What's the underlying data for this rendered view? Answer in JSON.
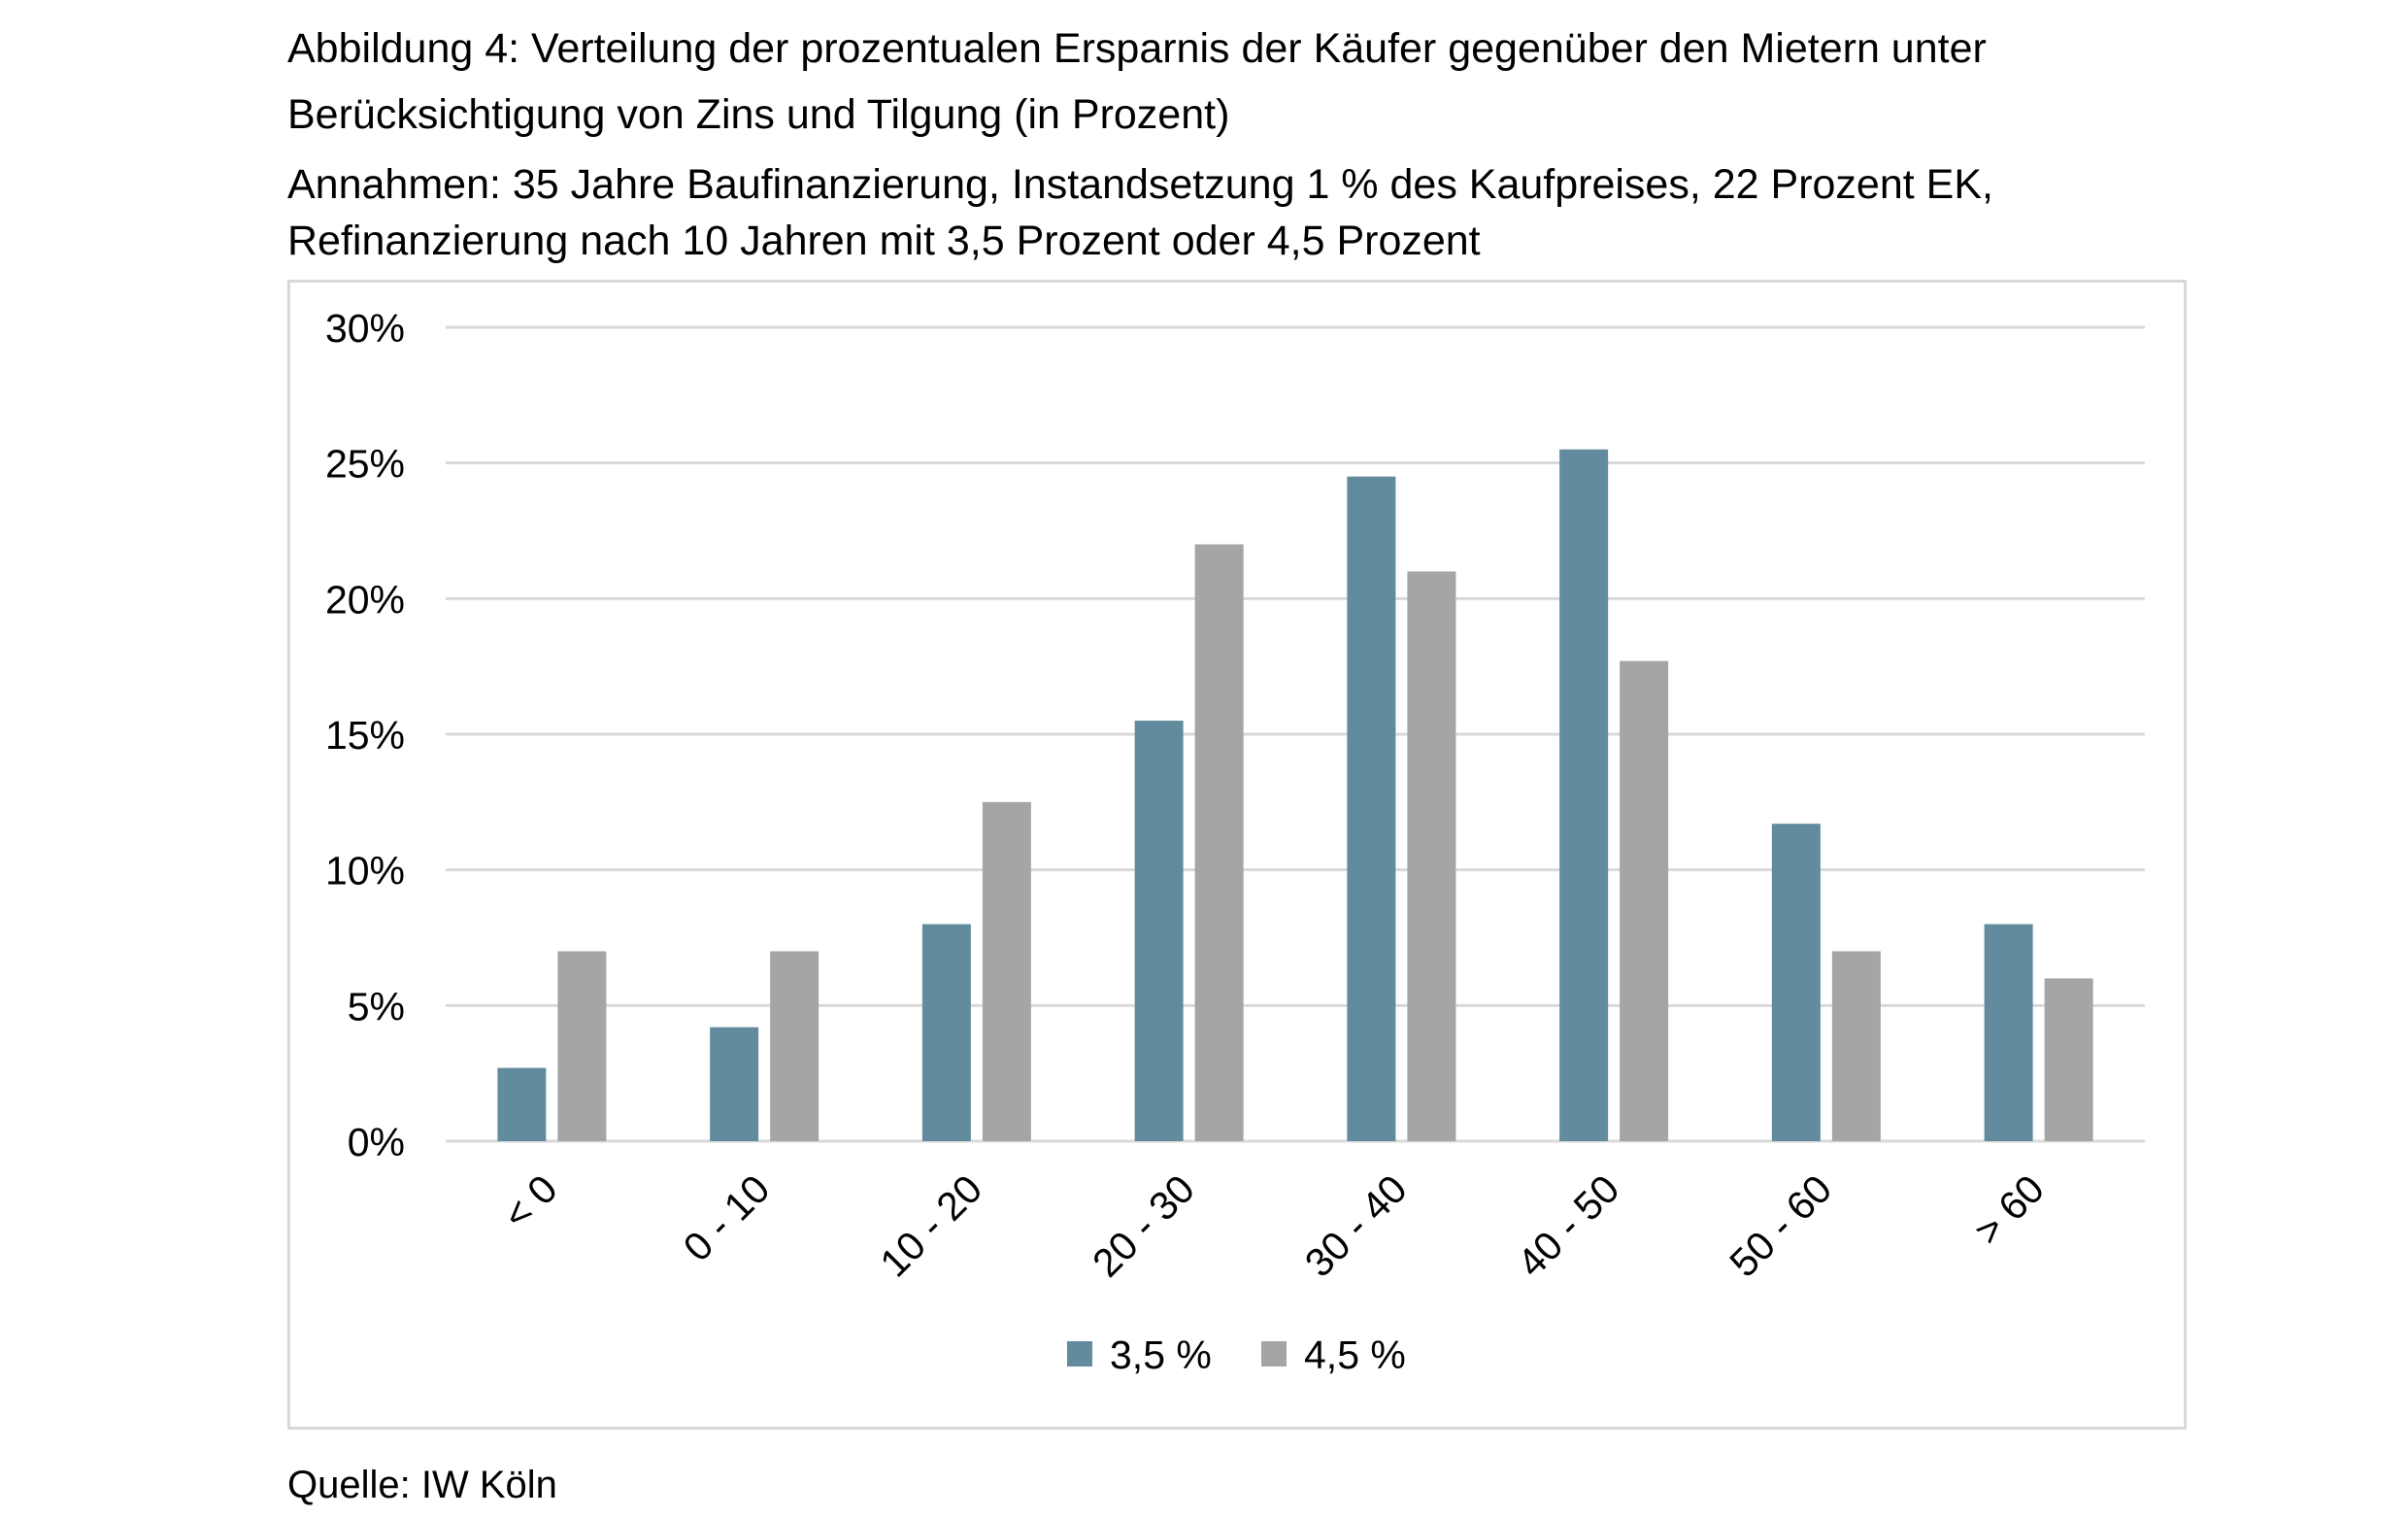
{
  "header": {
    "title_line1": "Abbildung 4: Verteilung der prozentualen Ersparnis der Käufer gegenüber den Mietern unter",
    "title_line2": "Berücksichtigung von Zins und Tilgung (in Prozent)",
    "subtitle_line1": "Annahmen: 35 Jahre Baufinanzierung, Instandsetzung 1 % des Kaufpreises, 22 Prozent EK,",
    "subtitle_line2": "Refinanzierung nach 10 Jahren mit 3,5 Prozent oder 4,5 Prozent"
  },
  "footer": {
    "source": "Quelle: IW Köln"
  },
  "chart_data": {
    "type": "bar",
    "categories": [
      "< 0",
      "0 - 10",
      "10 - 20",
      "20 - 30",
      "30 - 40",
      "40 - 50",
      "50 - 60",
      "> 60"
    ],
    "series": [
      {
        "name": "3,5 %",
        "color": "#628c9e",
        "values": [
          2.7,
          4.2,
          8.0,
          15.5,
          24.5,
          25.5,
          11.7,
          8.0
        ]
      },
      {
        "name": "4,5 %",
        "color": "#a5a5a5",
        "values": [
          7.0,
          7.0,
          12.5,
          22.0,
          21.0,
          17.7,
          7.0,
          6.0
        ]
      }
    ],
    "yticks": [
      "0%",
      "5%",
      "10%",
      "15%",
      "20%",
      "25%",
      "30%"
    ],
    "ylim": [
      0,
      30
    ],
    "grid": true,
    "gridColor": "#d9d9d9",
    "legend": "bottom-center"
  }
}
